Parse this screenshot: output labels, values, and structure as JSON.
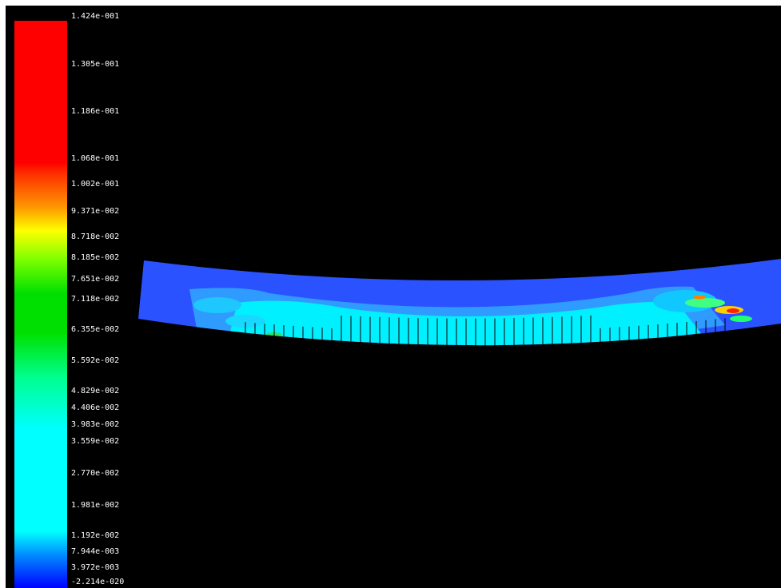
{
  "legend": {
    "labels": [
      "1.424e-001",
      "1.305e-001",
      "1.186e-001",
      "1.068e-001",
      "1.002e-001",
      "9.371e-002",
      "8.718e-002",
      "8.185e-002",
      "7.651e-002",
      "7.118e-002",
      "6.355e-002",
      "5.592e-002",
      "4.829e-002",
      "4.406e-002",
      "3.983e-002",
      "3.559e-002",
      "2.770e-002",
      "1.981e-002",
      "1.192e-002",
      "7.944e-003",
      "3.972e-003",
      "-2.214e-020"
    ],
    "colors": {
      "max": "#ff0000",
      "high": "#ff8000",
      "mid_high": "#ffff00",
      "mid": "#00c800",
      "mid_low": "#00ffc8",
      "low": "#00ffff",
      "min": "#0000ff"
    }
  },
  "background_color": "#000000"
}
